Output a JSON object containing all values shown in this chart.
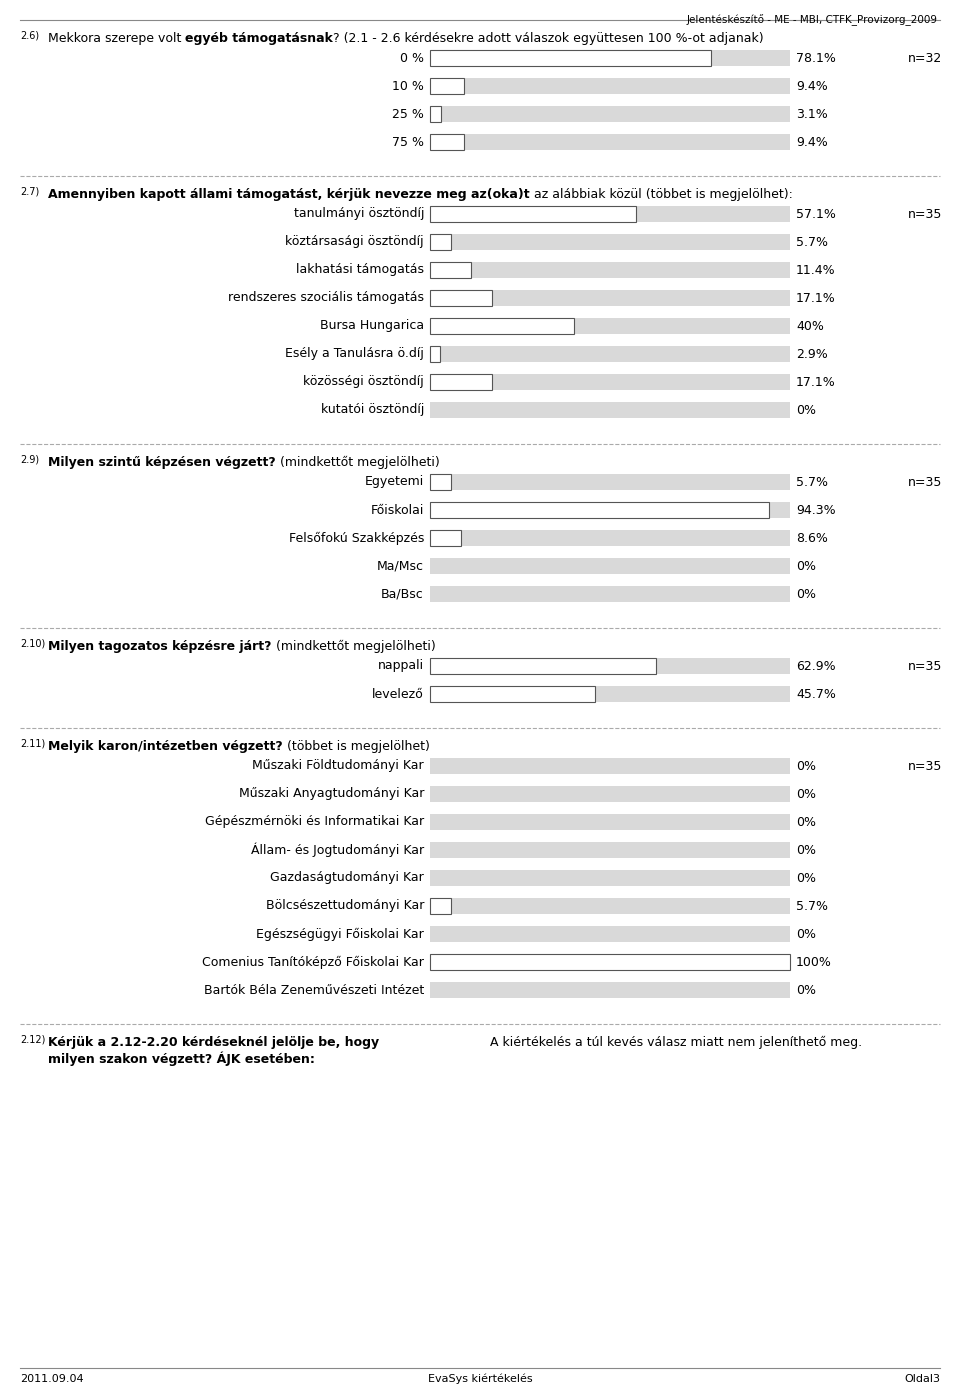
{
  "header_text": "Jelentéskészítő - ME - MBI, CTFK_Provizorg_2009",
  "footer_left": "2011.09.04",
  "footer_center": "EvaSys kiértékelés",
  "footer_right": "Oldal3",
  "section_26": {
    "number": "2.6)",
    "title_normal": "Mekkora szerepe volt ",
    "title_bold": "egyéb támogatásnak",
    "title_rest": "? (2.1 - 2.6 kérdésekre adott válaszok együttesen 100 %-ot adjanak)",
    "n": "n=32",
    "labels": [
      "0 %",
      "10 %",
      "25 %",
      "75 %"
    ],
    "values": [
      78.1,
      9.4,
      3.1,
      9.4
    ],
    "value_labels": [
      "78.1%",
      "9.4%",
      "3.1%",
      "9.4%"
    ]
  },
  "section_27": {
    "number": "2.7)",
    "title_bold": "Amennyiben kapott állami támogatást, kérjük nevezze meg az(oka)t",
    "title_rest": " az alábbiak közül (többet is megjelölhet):",
    "n": "n=35",
    "labels": [
      "tanulmányi ösztöndíj",
      "köztársasági ösztöndíj",
      "lakhatási támogatás",
      "rendszeres szociális támogatás",
      "Bursa Hungarica",
      "Esély a Tanulásra ö.díj",
      "közösségi ösztöndíj",
      "kutatói ösztöndíj"
    ],
    "values": [
      57.1,
      5.7,
      11.4,
      17.1,
      40.0,
      2.9,
      17.1,
      0.0
    ],
    "value_labels": [
      "57.1%",
      "5.7%",
      "11.4%",
      "17.1%",
      "40%",
      "2.9%",
      "17.1%",
      "0%"
    ]
  },
  "section_29": {
    "number": "2.9)",
    "title_bold": "Milyen szintű képzésen végzett?",
    "title_rest": " (mindkettőt megjelölheti)",
    "n": "n=35",
    "labels": [
      "Egyetemi",
      "Főiskolai",
      "Felsőfokú Szakképzés",
      "Ma/Msc",
      "Ba/Bsc"
    ],
    "values": [
      5.7,
      94.3,
      8.6,
      0.0,
      0.0
    ],
    "value_labels": [
      "5.7%",
      "94.3%",
      "8.6%",
      "0%",
      "0%"
    ]
  },
  "section_210": {
    "number": "2.10)",
    "title_bold": "Milyen tagozatos képzésre járt?",
    "title_rest": " (mindkettőt megjelölheti)",
    "n": "n=35",
    "labels": [
      "nappali",
      "levelező"
    ],
    "values": [
      62.9,
      45.7
    ],
    "value_labels": [
      "62.9%",
      "45.7%"
    ]
  },
  "section_211": {
    "number": "2.11)",
    "title_bold": "Melyik karon/intézetben végzett?",
    "title_rest": " (többet is megjelölhet)",
    "n": "n=35",
    "labels": [
      "Műszaki Földtudományi Kar",
      "Műszaki Anyagtudományi Kar",
      "Gépészmérnöki és Informatikai Kar",
      "Állam- és Jogtudományi Kar",
      "Gazdaságtudományi Kar",
      "Bölcsészettudományi Kar",
      "Egészségügyi Főiskolai Kar",
      "Comenius Tanítóképző Főiskolai Kar",
      "Bartók Béla Zeneművészeti Intézet"
    ],
    "values": [
      0.0,
      0.0,
      0.0,
      0.0,
      0.0,
      5.7,
      0.0,
      100.0,
      0.0
    ],
    "value_labels": [
      "0%",
      "0%",
      "0%",
      "0%",
      "0%",
      "5.7%",
      "0%",
      "100%",
      "0%"
    ]
  },
  "section_212": {
    "number": "2.12)",
    "title_bold": "Kérjük a 2.12-2.20 kérdéseknél jelölje be, hogy\nmilyen szakon végzett? ÁJK esetében:",
    "title_rest": "A kiértékelés a túl kevés válasz miatt nem jeleníthető meg."
  },
  "bar_bg_color": "#d9d9d9",
  "bar_fg_color": "#ffffff",
  "bar_border_color": "#555555",
  "text_color": "#000000",
  "dashed_line_color": "#aaaaaa"
}
